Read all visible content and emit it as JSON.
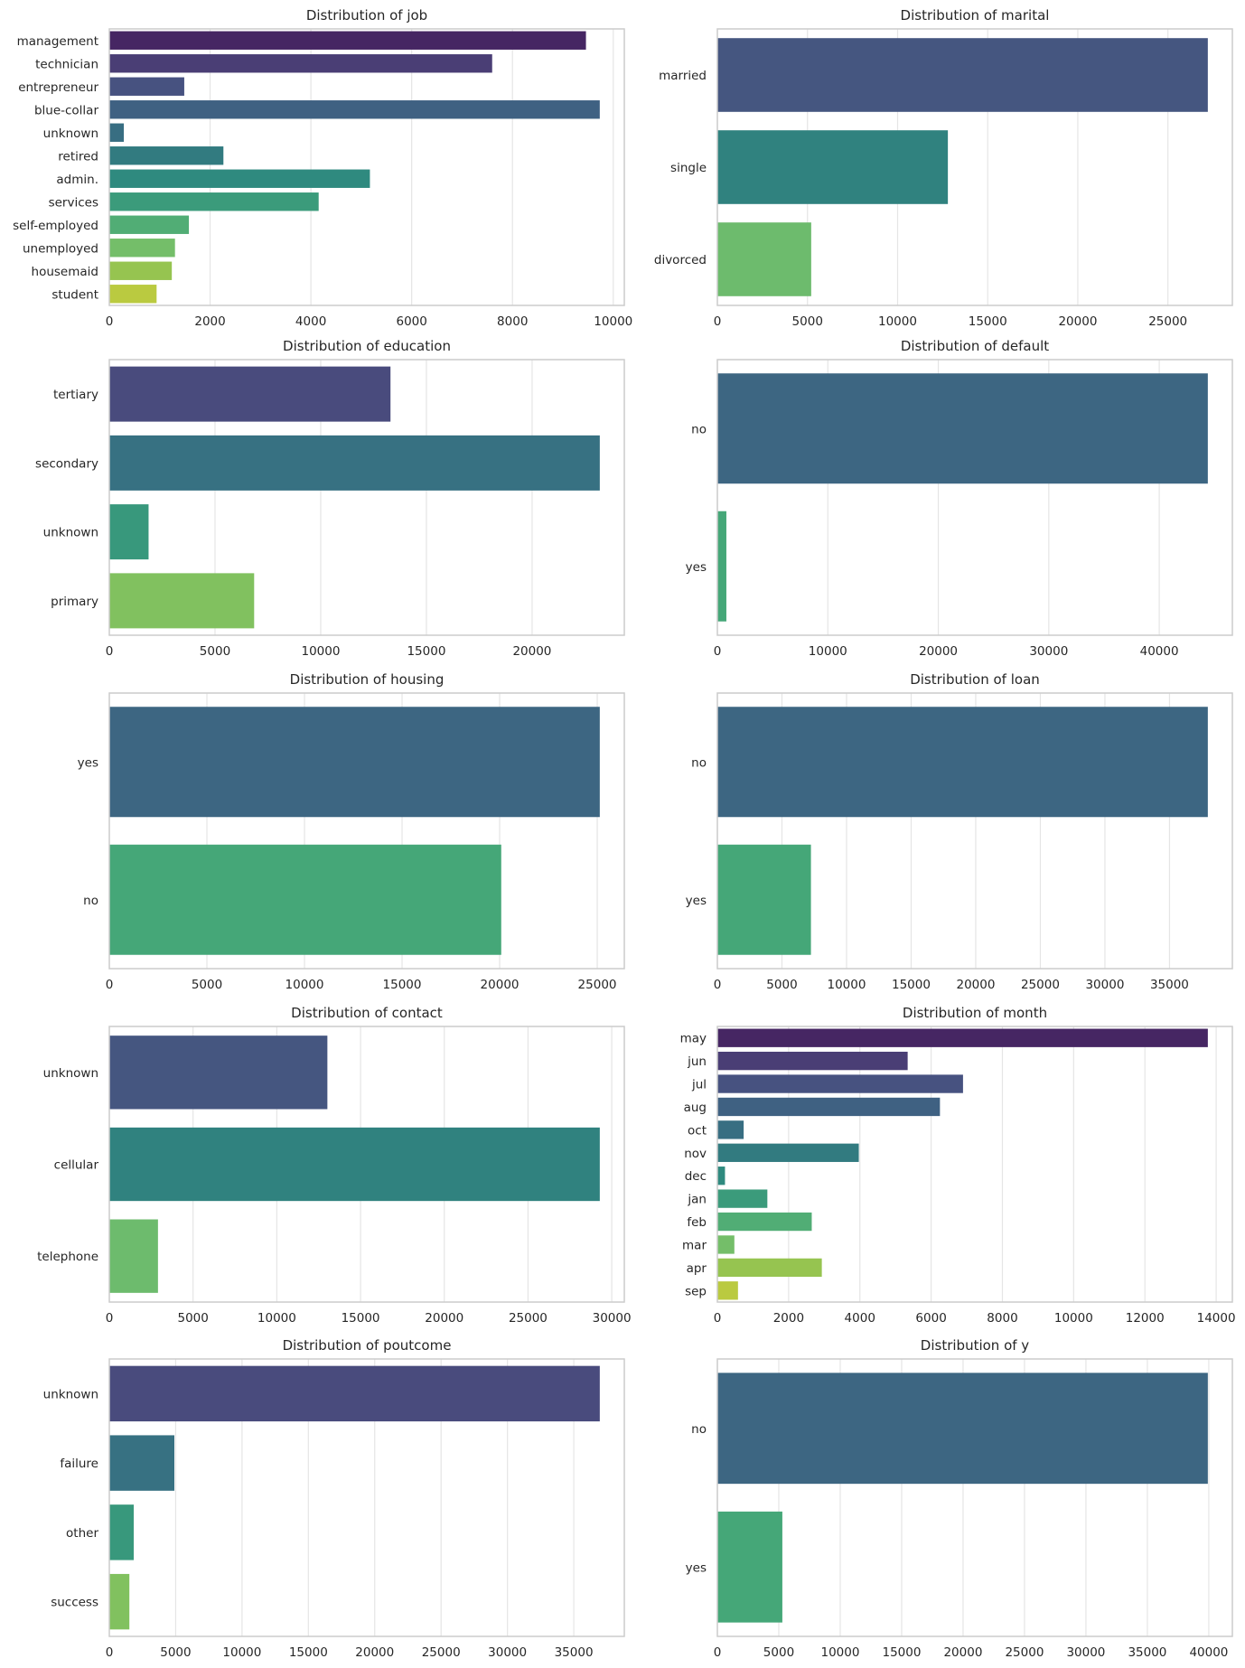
{
  "chart_data": [
    {
      "type": "bar",
      "orientation": "horizontal",
      "title": "Distribution of job",
      "palette": "viridis",
      "categories": [
        "management",
        "technician",
        "entrepreneur",
        "blue-collar",
        "unknown",
        "retired",
        "admin.",
        "services",
        "self-employed",
        "unemployed",
        "housemaid",
        "student"
      ],
      "values": [
        9458,
        7597,
        1487,
        9732,
        288,
        2264,
        5171,
        4154,
        1579,
        1303,
        1240,
        938
      ],
      "xlim": [
        0,
        10219
      ],
      "xticks": [
        0,
        2000,
        4000,
        6000,
        8000,
        10000
      ],
      "grid": "x"
    },
    {
      "type": "bar",
      "orientation": "horizontal",
      "title": "Distribution of marital",
      "palette": "viridis",
      "categories": [
        "married",
        "single",
        "divorced"
      ],
      "values": [
        27214,
        12790,
        5207
      ],
      "xlim": [
        0,
        28575
      ],
      "xticks": [
        0,
        5000,
        10000,
        15000,
        20000,
        25000
      ],
      "grid": "x"
    },
    {
      "type": "bar",
      "orientation": "horizontal",
      "title": "Distribution of education",
      "palette": "viridis",
      "categories": [
        "tertiary",
        "secondary",
        "unknown",
        "primary"
      ],
      "values": [
        13301,
        23202,
        1857,
        6851
      ],
      "xlim": [
        0,
        24362
      ],
      "xticks": [
        0,
        5000,
        10000,
        15000,
        20000
      ],
      "grid": "x"
    },
    {
      "type": "bar",
      "orientation": "horizontal",
      "title": "Distribution of default",
      "palette": "viridis",
      "categories": [
        "no",
        "yes"
      ],
      "values": [
        44396,
        815
      ],
      "xlim": [
        0,
        46616
      ],
      "xticks": [
        0,
        10000,
        20000,
        30000,
        40000
      ],
      "grid": "x"
    },
    {
      "type": "bar",
      "orientation": "horizontal",
      "title": "Distribution of housing",
      "palette": "viridis",
      "categories": [
        "yes",
        "no"
      ],
      "values": [
        25130,
        20081
      ],
      "xlim": [
        0,
        26387
      ],
      "xticks": [
        0,
        5000,
        10000,
        15000,
        20000,
        25000
      ],
      "grid": "x"
    },
    {
      "type": "bar",
      "orientation": "horizontal",
      "title": "Distribution of loan",
      "palette": "viridis",
      "categories": [
        "no",
        "yes"
      ],
      "values": [
        37967,
        7244
      ],
      "xlim": [
        0,
        39865
      ],
      "xticks": [
        0,
        5000,
        10000,
        15000,
        20000,
        25000,
        30000,
        35000
      ],
      "grid": "x"
    },
    {
      "type": "bar",
      "orientation": "horizontal",
      "title": "Distribution of contact",
      "palette": "viridis",
      "categories": [
        "unknown",
        "cellular",
        "telephone"
      ],
      "values": [
        13020,
        29285,
        2906
      ],
      "xlim": [
        0,
        30749
      ],
      "xticks": [
        0,
        5000,
        10000,
        15000,
        20000,
        25000,
        30000
      ],
      "grid": "x"
    },
    {
      "type": "bar",
      "orientation": "horizontal",
      "title": "Distribution of month",
      "palette": "viridis",
      "categories": [
        "may",
        "jun",
        "jul",
        "aug",
        "oct",
        "nov",
        "dec",
        "jan",
        "feb",
        "mar",
        "apr",
        "sep"
      ],
      "values": [
        13766,
        5341,
        6895,
        6247,
        738,
        3970,
        214,
        1403,
        2649,
        477,
        2932,
        579
      ],
      "xlim": [
        0,
        14454
      ],
      "xticks": [
        0,
        2000,
        4000,
        6000,
        8000,
        10000,
        12000,
        14000
      ],
      "grid": "x"
    },
    {
      "type": "bar",
      "orientation": "horizontal",
      "title": "Distribution of poutcome",
      "palette": "viridis",
      "categories": [
        "unknown",
        "failure",
        "other",
        "success"
      ],
      "values": [
        36959,
        4901,
        1840,
        1511
      ],
      "xlim": [
        0,
        38807
      ],
      "xticks": [
        0,
        5000,
        10000,
        15000,
        20000,
        25000,
        30000,
        35000
      ],
      "grid": "x"
    },
    {
      "type": "bar",
      "orientation": "horizontal",
      "title": "Distribution of y",
      "palette": "viridis",
      "categories": [
        "no",
        "yes"
      ],
      "values": [
        39922,
        5289
      ],
      "xlim": [
        0,
        41918
      ],
      "xticks": [
        0,
        5000,
        10000,
        15000,
        20000,
        25000,
        30000,
        35000,
        40000
      ],
      "grid": "x"
    }
  ]
}
